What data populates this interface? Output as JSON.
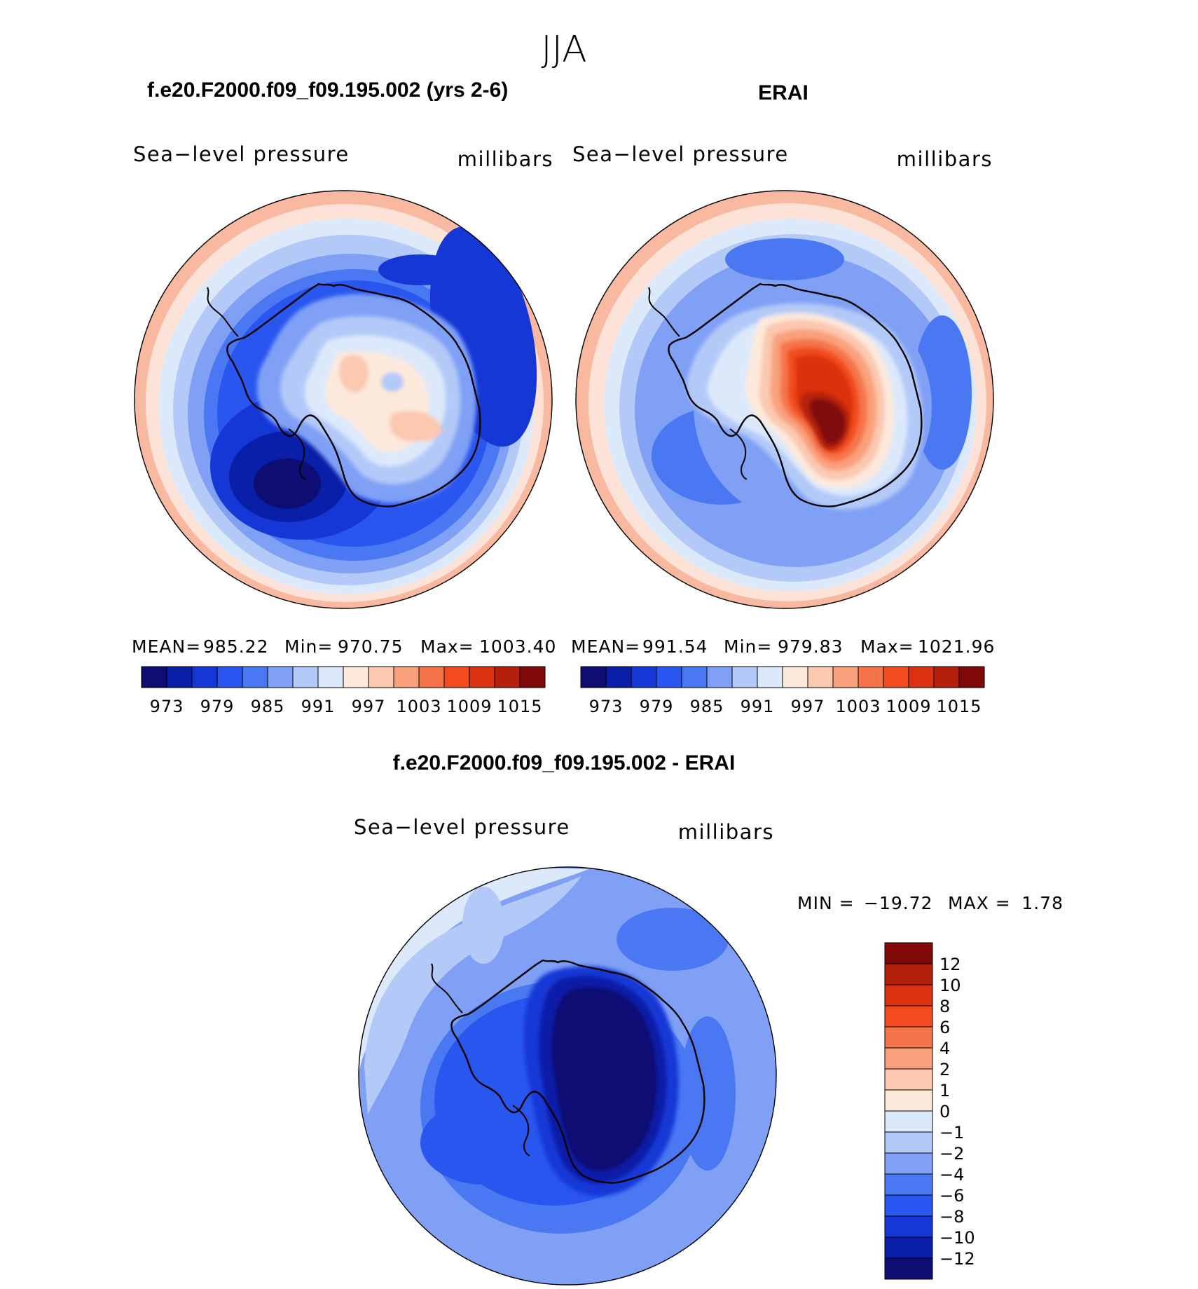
{
  "page": {
    "super_title": "JJA"
  },
  "chart_data": [
    {
      "type": "heatmap",
      "projection": "south-polar-stereographic",
      "title": "f.e20.F2000.f09_f09.195.002 (yrs 2-6)",
      "left_label": "Sea−level pressure",
      "right_label": "millibars",
      "stats": {
        "mean_label": "MEAN=",
        "mean": "985.22",
        "min_label": "Min=",
        "min": "970.75",
        "max_label": "Max=",
        "max": "1003.40"
      },
      "colorbar": {
        "orientation": "horizontal",
        "tick_labels": [
          "973",
          "979",
          "985",
          "991",
          "997",
          "1003",
          "1009",
          "1015"
        ],
        "colors": [
          "#0d0d73",
          "#0a1fa8",
          "#1537d6",
          "#2a56f0",
          "#4a78f2",
          "#7fa0f5",
          "#b3c9f8",
          "#dce9fb",
          "#fde9dc",
          "#fbc8b0",
          "#f9a07c",
          "#f67449",
          "#f14b1f",
          "#db3210",
          "#b5200c",
          "#800a0a"
        ]
      }
    },
    {
      "type": "heatmap",
      "projection": "south-polar-stereographic",
      "title": "ERAI",
      "left_label": "Sea−level pressure",
      "right_label": "millibars",
      "stats": {
        "mean_label": "MEAN=",
        "mean": "991.54",
        "min_label": "Min=",
        "min": "979.83",
        "max_label": "Max=",
        "max": "1021.96"
      },
      "colorbar": {
        "orientation": "horizontal",
        "tick_labels": [
          "973",
          "979",
          "985",
          "991",
          "997",
          "1003",
          "1009",
          "1015"
        ],
        "colors": [
          "#0d0d73",
          "#0a1fa8",
          "#1537d6",
          "#2a56f0",
          "#4a78f2",
          "#7fa0f5",
          "#b3c9f8",
          "#dce9fb",
          "#fde9dc",
          "#fbc8b0",
          "#f9a07c",
          "#f67449",
          "#f14b1f",
          "#db3210",
          "#b5200c",
          "#800a0a"
        ]
      }
    },
    {
      "type": "heatmap",
      "projection": "south-polar-stereographic",
      "title": "f.e20.F2000.f09_f09.195.002 - ERAI",
      "left_label": "Sea−level pressure",
      "right_label": "millibars",
      "stats": {
        "min_label": "MIN =",
        "min": "−19.72",
        "max_label": "MAX =",
        "max": "1.78"
      },
      "colorbar": {
        "orientation": "vertical",
        "tick_labels": [
          "12",
          "10",
          "8",
          "6",
          "4",
          "2",
          "1",
          "0",
          "−1",
          "−2",
          "−4",
          "−6",
          "−8",
          "−10",
          "−12"
        ],
        "colors": [
          "#800a0a",
          "#b5200c",
          "#db3210",
          "#f14b1f",
          "#f67449",
          "#f9a07c",
          "#fbc8b0",
          "#fde9dc",
          "#dce9fb",
          "#b3c9f8",
          "#7fa0f5",
          "#4a78f2",
          "#2a56f0",
          "#1537d6",
          "#0a1fa8",
          "#0d0d73"
        ]
      }
    }
  ]
}
